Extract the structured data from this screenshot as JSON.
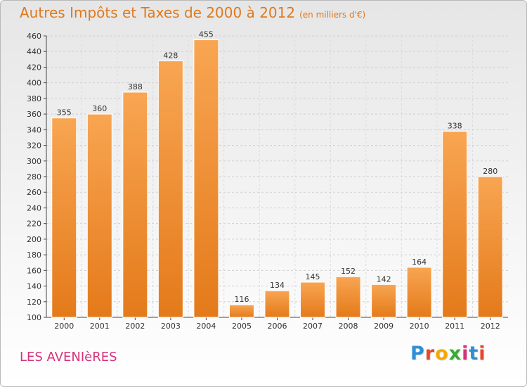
{
  "title": "Autres Impôts et Taxes de 2000 à 2012",
  "unit": "(en milliers d'€)",
  "commune": "LES AVENIèRES",
  "brand": {
    "letters": [
      "P",
      "r",
      "o",
      "x",
      "i",
      "t",
      "i"
    ],
    "colors": [
      "#2d8fd5",
      "#e8462a",
      "#f5a800",
      "#3aaa35",
      "#d6327a",
      "#2d8fd5",
      "#e8462a"
    ]
  },
  "colors": {
    "bar_light": "#f8a552",
    "bar_dark": "#e47a1a",
    "title": "#e0791a",
    "commune": "#d6327a"
  },
  "chart_data": {
    "type": "bar",
    "title": "Autres Impôts et Taxes de 2000 à 2012",
    "xlabel": "",
    "ylabel": "",
    "categories": [
      "2000",
      "2001",
      "2002",
      "2003",
      "2004",
      "2005",
      "2006",
      "2007",
      "2008",
      "2009",
      "2010",
      "2011",
      "2012"
    ],
    "values": [
      355,
      360,
      388,
      428,
      455,
      116,
      134,
      145,
      152,
      142,
      164,
      338,
      280
    ],
    "ylim": [
      100,
      460
    ],
    "yticks": [
      100,
      120,
      140,
      160,
      180,
      200,
      220,
      240,
      260,
      280,
      300,
      320,
      340,
      360,
      380,
      400,
      420,
      440,
      460
    ],
    "grid": true,
    "legend": "none"
  }
}
